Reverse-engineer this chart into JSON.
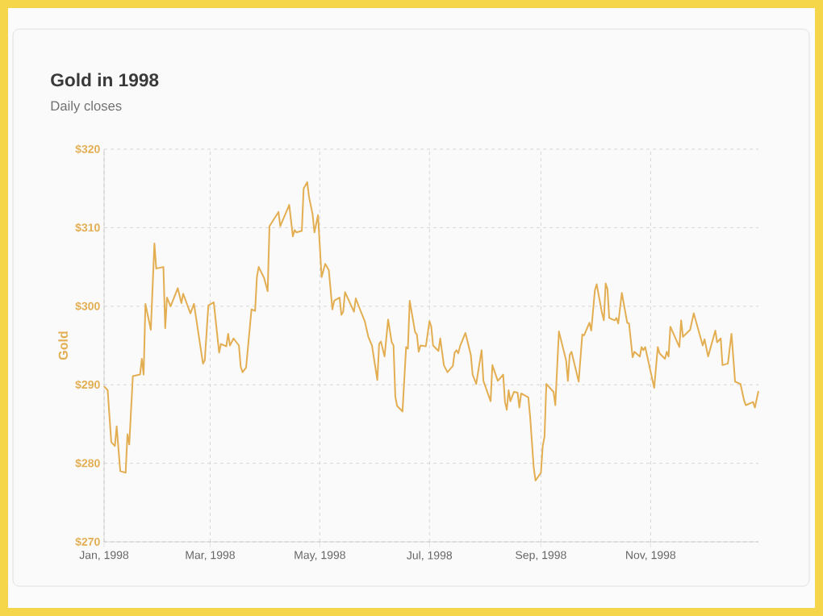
{
  "chart_data": {
    "type": "line",
    "title": "Gold in 1998",
    "subtitle": "Daily closes",
    "ylabel": "Gold",
    "color": "#e3ae52",
    "x": [
      "1998-01-01",
      "1998-01-03",
      "1998-01-05",
      "1998-01-07",
      "1998-01-08",
      "1998-01-10",
      "1998-01-13",
      "1998-01-14",
      "1998-01-15",
      "1998-01-17",
      "1998-01-21",
      "1998-01-22",
      "1998-01-23",
      "1998-01-24",
      "1998-01-27",
      "1998-01-29",
      "1998-01-30",
      "1998-02-03",
      "1998-02-04",
      "1998-02-05",
      "1998-02-07",
      "1998-02-11",
      "1998-02-13",
      "1998-02-14",
      "1998-02-18",
      "1998-02-20",
      "1998-02-25",
      "1998-02-26",
      "1998-02-28",
      "1998-03-03",
      "1998-03-06",
      "1998-03-07",
      "1998-03-10",
      "1998-03-11",
      "1998-03-12",
      "1998-03-14",
      "1998-03-17",
      "1998-03-18",
      "1998-03-19",
      "1998-03-21",
      "1998-03-24",
      "1998-03-26",
      "1998-03-27",
      "1998-03-28",
      "1998-03-31",
      "1998-04-02",
      "1998-04-03",
      "1998-04-08",
      "1998-04-09",
      "1998-04-14",
      "1998-04-16",
      "1998-04-17",
      "1998-04-18",
      "1998-04-21",
      "1998-04-22",
      "1998-04-24",
      "1998-04-25",
      "1998-04-27",
      "1998-04-28",
      "1998-04-30",
      "1998-05-02",
      "1998-05-04",
      "1998-05-06",
      "1998-05-08",
      "1998-05-09",
      "1998-05-12",
      "1998-05-13",
      "1998-05-14",
      "1998-05-15",
      "1998-05-18",
      "1998-05-20",
      "1998-05-21",
      "1998-05-23",
      "1998-05-26",
      "1998-05-28",
      "1998-05-30",
      "1998-06-02",
      "1998-06-03",
      "1998-06-04",
      "1998-06-06",
      "1998-06-08",
      "1998-06-10",
      "1998-06-11",
      "1998-06-12",
      "1998-06-13",
      "1998-06-16",
      "1998-06-18",
      "1998-06-19",
      "1998-06-20",
      "1998-06-23",
      "1998-06-24",
      "1998-06-25",
      "1998-06-26",
      "1998-06-29",
      "1998-07-01",
      "1998-07-02",
      "1998-07-03",
      "1998-07-06",
      "1998-07-07",
      "1998-07-09",
      "1998-07-11",
      "1998-07-14",
      "1998-07-15",
      "1998-07-16",
      "1998-07-17",
      "1998-07-18",
      "1998-07-21",
      "1998-07-24",
      "1998-07-25",
      "1998-07-27",
      "1998-07-30",
      "1998-07-31",
      "1998-08-04",
      "1998-08-05",
      "1998-08-08",
      "1998-08-11",
      "1998-08-12",
      "1998-08-13",
      "1998-08-14",
      "1998-08-15",
      "1998-08-17",
      "1998-08-19",
      "1998-08-20",
      "1998-08-21",
      "1998-08-25",
      "1998-08-26",
      "1998-08-28",
      "1998-08-29",
      "1998-09-01",
      "1998-09-02",
      "1998-09-03",
      "1998-09-04",
      "1998-09-08",
      "1998-09-09",
      "1998-09-11",
      "1998-09-15",
      "1998-09-16",
      "1998-09-17",
      "1998-09-18",
      "1998-09-22",
      "1998-09-24",
      "1998-09-25",
      "1998-09-28",
      "1998-09-29",
      "1998-10-01",
      "1998-10-02",
      "1998-10-05",
      "1998-10-06",
      "1998-10-07",
      "1998-10-08",
      "1998-10-09",
      "1998-10-12",
      "1998-10-13",
      "1998-10-14",
      "1998-10-16",
      "1998-10-19",
      "1998-10-20",
      "1998-10-22",
      "1998-10-23",
      "1998-10-26",
      "1998-10-27",
      "1998-10-28",
      "1998-10-29",
      "1998-11-03",
      "1998-11-05",
      "1998-11-06",
      "1998-11-09",
      "1998-11-10",
      "1998-11-11",
      "1998-11-12",
      "1998-11-17",
      "1998-11-18",
      "1998-11-19",
      "1998-11-23",
      "1998-11-25",
      "1998-11-30",
      "1998-12-01",
      "1998-12-03",
      "1998-12-07",
      "1998-12-08",
      "1998-12-10",
      "1998-12-11",
      "1998-12-14",
      "1998-12-16",
      "1998-12-18",
      "1998-12-21",
      "1998-12-23",
      "1998-12-24",
      "1998-12-28",
      "1998-12-29",
      "1998-12-31"
    ],
    "values": [
      289.8,
      289.3,
      282.7,
      282.2,
      284.7,
      279.0,
      278.8,
      283.7,
      282.4,
      291.1,
      291.3,
      293.3,
      291.3,
      300.3,
      297.0,
      308.0,
      304.8,
      305.0,
      297.2,
      301.1,
      300.0,
      302.3,
      300.4,
      301.6,
      299.1,
      300.3,
      292.7,
      293.1,
      300.1,
      300.5,
      294.1,
      295.2,
      294.9,
      296.5,
      295.0,
      295.9,
      295.0,
      292.3,
      291.6,
      292.2,
      299.6,
      299.4,
      303.7,
      305.0,
      303.6,
      301.9,
      310.2,
      312.0,
      310.2,
      312.9,
      308.9,
      309.7,
      309.4,
      309.6,
      315.0,
      315.8,
      313.9,
      311.7,
      309.4,
      311.6,
      303.7,
      305.4,
      304.6,
      299.6,
      300.7,
      301.1,
      298.9,
      299.3,
      301.8,
      300.3,
      299.3,
      301.0,
      299.8,
      298.1,
      296.1,
      295.0,
      290.6,
      295.2,
      295.5,
      293.6,
      298.3,
      295.4,
      295.0,
      288.5,
      287.3,
      286.6,
      294.8,
      294.6,
      300.7,
      296.7,
      296.4,
      294.2,
      295.0,
      294.9,
      298.1,
      297.4,
      295.0,
      294.3,
      295.9,
      292.5,
      291.6,
      292.4,
      294.1,
      294.4,
      294.0,
      294.9,
      296.6,
      293.8,
      291.3,
      290.1,
      294.4,
      290.5,
      287.9,
      292.5,
      290.5,
      291.3,
      287.8,
      286.8,
      289.3,
      287.9,
      289.1,
      289.0,
      287.1,
      288.9,
      288.4,
      285.9,
      279.4,
      277.8,
      278.8,
      282.2,
      283.4,
      290.1,
      289.1,
      287.4,
      296.8,
      293.1,
      290.5,
      293.8,
      294.2,
      290.4,
      296.4,
      296.3,
      297.9,
      296.9,
      302.0,
      302.8,
      299.1,
      298.2,
      302.9,
      302.2,
      298.5,
      298.2,
      298.5,
      297.8,
      301.7,
      297.9,
      297.8,
      293.5,
      294.2,
      293.6,
      294.8,
      294.4,
      294.8,
      289.6,
      294.8,
      294.0,
      293.3,
      294.2,
      293.6,
      297.4,
      294.8,
      298.2,
      296.1,
      297.0,
      299.1,
      295.0,
      295.8,
      293.6,
      296.9,
      295.4,
      295.9,
      292.5,
      292.7,
      296.5,
      290.4,
      290.1,
      288.0,
      287.4,
      287.8,
      287.1,
      289.2
    ],
    "xlim": [
      "1998-01-01",
      "1998-12-31"
    ],
    "xticks": [
      {
        "value": "1998-01-01",
        "label": "Jan, 1998"
      },
      {
        "value": "1998-03-01",
        "label": "Mar, 1998"
      },
      {
        "value": "1998-05-01",
        "label": "May, 1998"
      },
      {
        "value": "1998-07-01",
        "label": "Jul, 1998"
      },
      {
        "value": "1998-09-01",
        "label": "Sep, 1998"
      },
      {
        "value": "1998-11-01",
        "label": "Nov, 1998"
      }
    ],
    "ylim": [
      270,
      320
    ],
    "yticks": [
      {
        "value": 270,
        "label": "$270"
      },
      {
        "value": 280,
        "label": "$280"
      },
      {
        "value": 290,
        "label": "$290"
      },
      {
        "value": 300,
        "label": "$300"
      },
      {
        "value": 310,
        "label": "$310"
      },
      {
        "value": 320,
        "label": "$320"
      }
    ],
    "grid": true
  }
}
